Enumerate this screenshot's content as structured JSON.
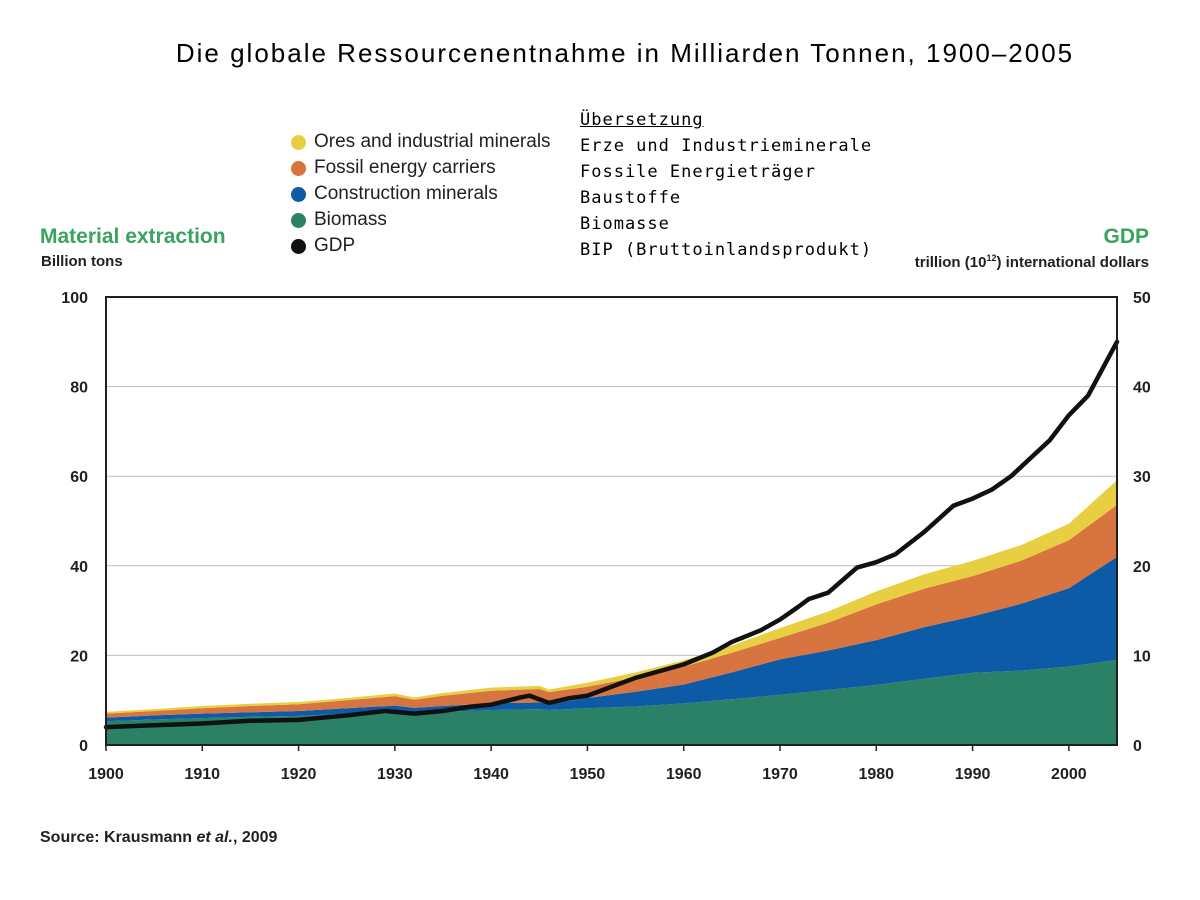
{
  "title": "Die globale Ressourcenentnahme in Milliarden Tonnen, 1900–2005",
  "legend": [
    {
      "label": "Ores and industrial minerals",
      "color": "#e8cf42"
    },
    {
      "label": "Fossil energy carriers",
      "color": "#d7743f"
    },
    {
      "label": "Construction minerals",
      "color": "#0d5aa7"
    },
    {
      "label": "Biomass",
      "color": "#2a8166"
    },
    {
      "label": "GDP",
      "color": "#111111"
    }
  ],
  "translation": {
    "heading": "Übersetzung",
    "items": [
      "Erze und Industrieminerale",
      "Fossile Energieträger",
      "Baustoffe",
      "Biomasse",
      "BIP (Bruttoinlandsprodukt)"
    ]
  },
  "left_axis": {
    "title": "Material extraction",
    "subtitle": "Billion tons"
  },
  "right_axis": {
    "title": "GDP",
    "subtitle_prefix": "trillion (10",
    "subtitle_sup": "12",
    "subtitle_suffix": ") international dollars"
  },
  "source": {
    "prefix": "Source: Krausmann ",
    "etal": "et al.",
    "suffix": ", 2009"
  },
  "chart_data": {
    "type": "area",
    "stacked": true,
    "xlim": [
      1900,
      2005
    ],
    "ylim": [
      0,
      100
    ],
    "y2lim": [
      0,
      50
    ],
    "xticks": [
      1900,
      1910,
      1920,
      1930,
      1940,
      1950,
      1960,
      1970,
      1980,
      1990,
      2000
    ],
    "yticks": [
      0,
      20,
      40,
      60,
      80,
      100
    ],
    "y2ticks": [
      0,
      10,
      20,
      30,
      40,
      50
    ],
    "grid": true,
    "x": [
      1900,
      1905,
      1910,
      1915,
      1920,
      1925,
      1930,
      1932,
      1935,
      1940,
      1945,
      1946,
      1950,
      1955,
      1960,
      1965,
      1970,
      1975,
      1980,
      1985,
      1990,
      1995,
      2000,
      2005
    ],
    "series": [
      {
        "name": "Biomass",
        "color": "#2a8166",
        "values": [
          5.3,
          5.7,
          6.0,
          6.3,
          6.5,
          7.0,
          7.5,
          7.1,
          7.4,
          7.8,
          8.0,
          7.8,
          8.2,
          8.6,
          9.3,
          10.2,
          11.2,
          12.3,
          13.4,
          14.8,
          16.1,
          16.6,
          17.5,
          19.0
        ]
      },
      {
        "name": "Construction minerals",
        "color": "#0d5aa7",
        "values": [
          0.8,
          0.9,
          1.0,
          1.0,
          1.1,
          1.2,
          1.3,
          1.2,
          1.3,
          1.5,
          1.5,
          1.4,
          2.3,
          3.3,
          4.2,
          6.0,
          7.9,
          8.8,
          10.0,
          11.5,
          12.6,
          14.9,
          17.5,
          23.0
        ]
      },
      {
        "name": "Fossil energy carriers",
        "color": "#d7743f",
        "values": [
          0.9,
          1.0,
          1.2,
          1.4,
          1.5,
          1.8,
          2.1,
          1.8,
          2.3,
          2.8,
          3.0,
          2.6,
          2.5,
          3.2,
          4.0,
          4.4,
          4.8,
          6.2,
          8.0,
          8.6,
          9.0,
          9.6,
          10.7,
          11.6
        ]
      },
      {
        "name": "Ores and industrial minerals",
        "color": "#e8cf42",
        "values": [
          0.4,
          0.4,
          0.5,
          0.5,
          0.5,
          0.5,
          0.6,
          0.5,
          0.6,
          0.7,
          0.7,
          0.6,
          0.9,
          1.1,
          1.4,
          1.6,
          2.2,
          2.5,
          2.9,
          3.2,
          3.4,
          3.5,
          3.7,
          5.5
        ]
      }
    ],
    "gdp": {
      "name": "GDP",
      "axis": "right",
      "x": [
        1900,
        1905,
        1910,
        1915,
        1920,
        1925,
        1929,
        1932,
        1935,
        1938,
        1940,
        1943,
        1944,
        1946,
        1948,
        1950,
        1955,
        1960,
        1963,
        1965,
        1968,
        1970,
        1972,
        1973,
        1975,
        1978,
        1980,
        1982,
        1985,
        1988,
        1990,
        1992,
        1994,
        1996,
        1998,
        2000,
        2002,
        2004,
        2005
      ],
      "values": [
        2.0,
        2.2,
        2.4,
        2.7,
        2.8,
        3.3,
        3.8,
        3.5,
        3.8,
        4.3,
        4.5,
        5.3,
        5.5,
        4.7,
        5.2,
        5.5,
        7.5,
        9.0,
        10.3,
        11.5,
        12.8,
        14.0,
        15.5,
        16.3,
        17.0,
        19.8,
        20.4,
        21.3,
        23.8,
        26.7,
        27.5,
        28.5,
        30.0,
        32.0,
        34.0,
        36.8,
        39.0,
        43.0,
        45.0
      ]
    }
  }
}
